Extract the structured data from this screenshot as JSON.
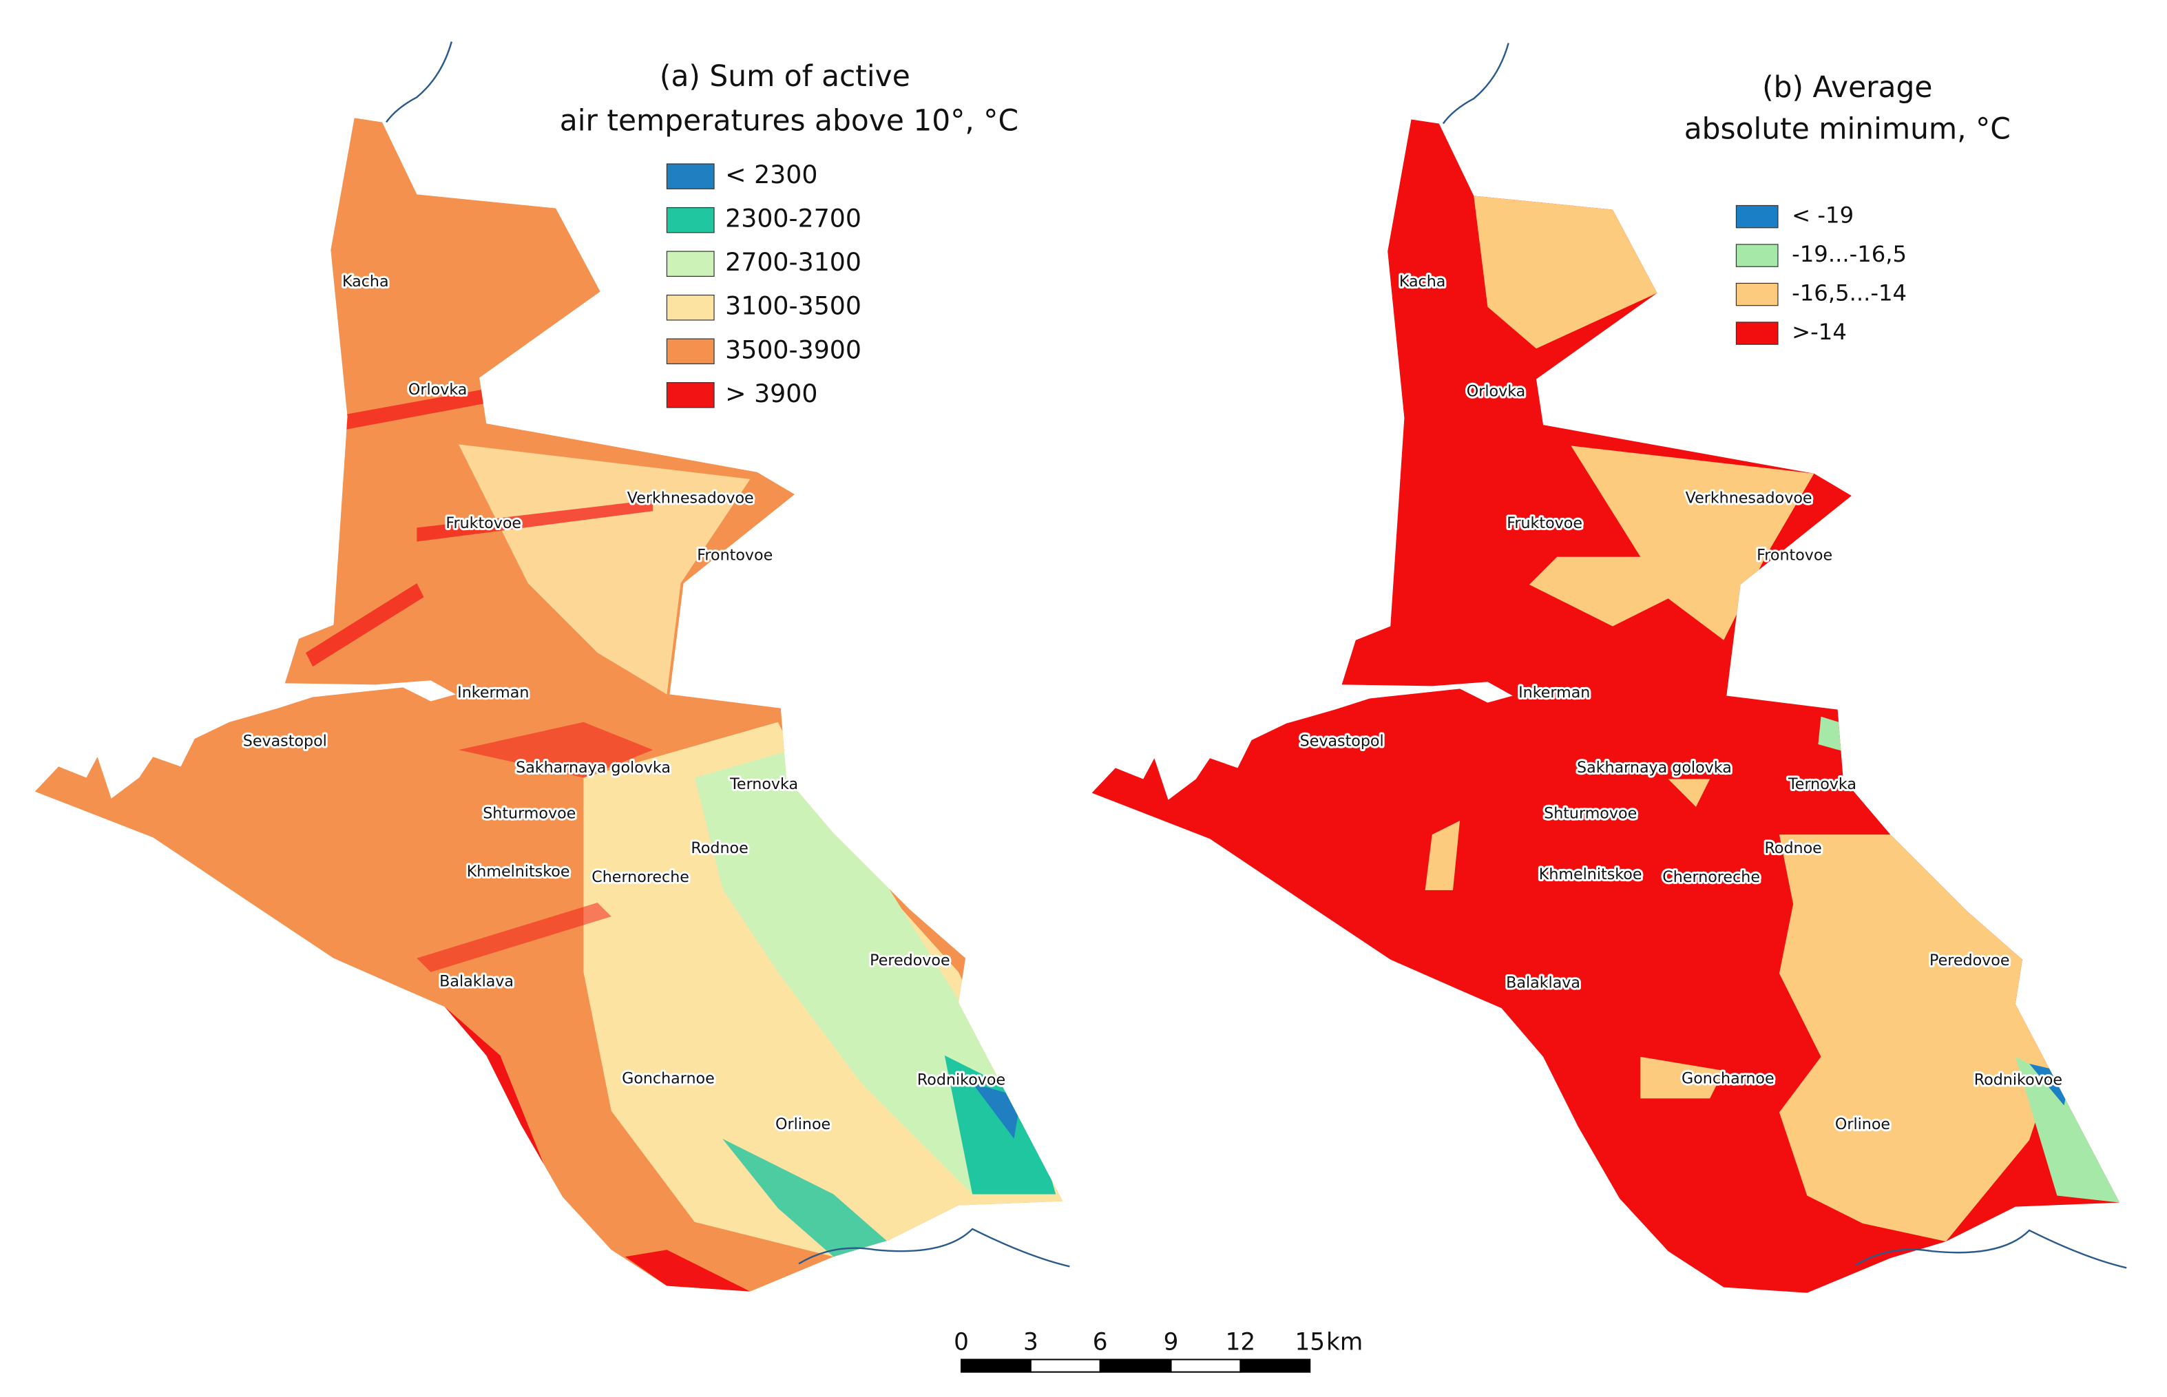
{
  "panels": [
    {
      "title_lines": [
        "(a) Sum of active",
        "air temperatures above 10°, °C"
      ],
      "legend": [
        {
          "label": "< 2300",
          "color": "#1f7fc0"
        },
        {
          "label": "2300-2700",
          "color": "#1fc6a0"
        },
        {
          "label": "2700-3100",
          "color": "#cdf2b8"
        },
        {
          "label": "3100-3500",
          "color": "#fde3a2"
        },
        {
          "label": "3500-3900",
          "color": "#f4914f"
        },
        {
          "label": "> 3900",
          "color": "#f21414"
        }
      ],
      "places": [
        "Kacha",
        "Orlovka",
        "Verkhnesadovoe",
        "Fruktovoe",
        "Frontovoe",
        "Inkerman",
        "Sevastopol",
        "Sakharnaya golovka",
        "Ternovka",
        "Shturmovoe",
        "Rodnoe",
        "Khmelnitskoe",
        "Chernoreche",
        "Peredovoe",
        "Balaklava",
        "Goncharnoe",
        "Rodnikovoe",
        "Orlinoe"
      ]
    },
    {
      "title_lines": [
        "(b) Average",
        "absolute minimum, °C"
      ],
      "legend": [
        {
          "label": "< -19",
          "color": "#1a7fc4"
        },
        {
          "label": "-19...-16,5",
          "color": "#a6e8a8"
        },
        {
          "label": "-16,5...-14",
          "color": "#fccb7e"
        },
        {
          "label": ">-14",
          "color": "#f20e0e"
        }
      ],
      "places": [
        "Kacha",
        "Orlovka",
        "Verkhnesadovoe",
        "Fruktovoe",
        "Frontovoe",
        "Inkerman",
        "Sevastopol",
        "Sakharnaya golovka",
        "Ternovka",
        "Shturmovoe",
        "Rodnoe",
        "Khmelnitskoe",
        "Chernoreche",
        "Peredovoe",
        "Balaklava",
        "Goncharnoe",
        "Rodnikovoe",
        "Orlinoe"
      ]
    }
  ],
  "scale_bar": {
    "ticks": [
      0,
      3,
      6,
      9,
      12,
      15
    ],
    "unit": "km"
  }
}
